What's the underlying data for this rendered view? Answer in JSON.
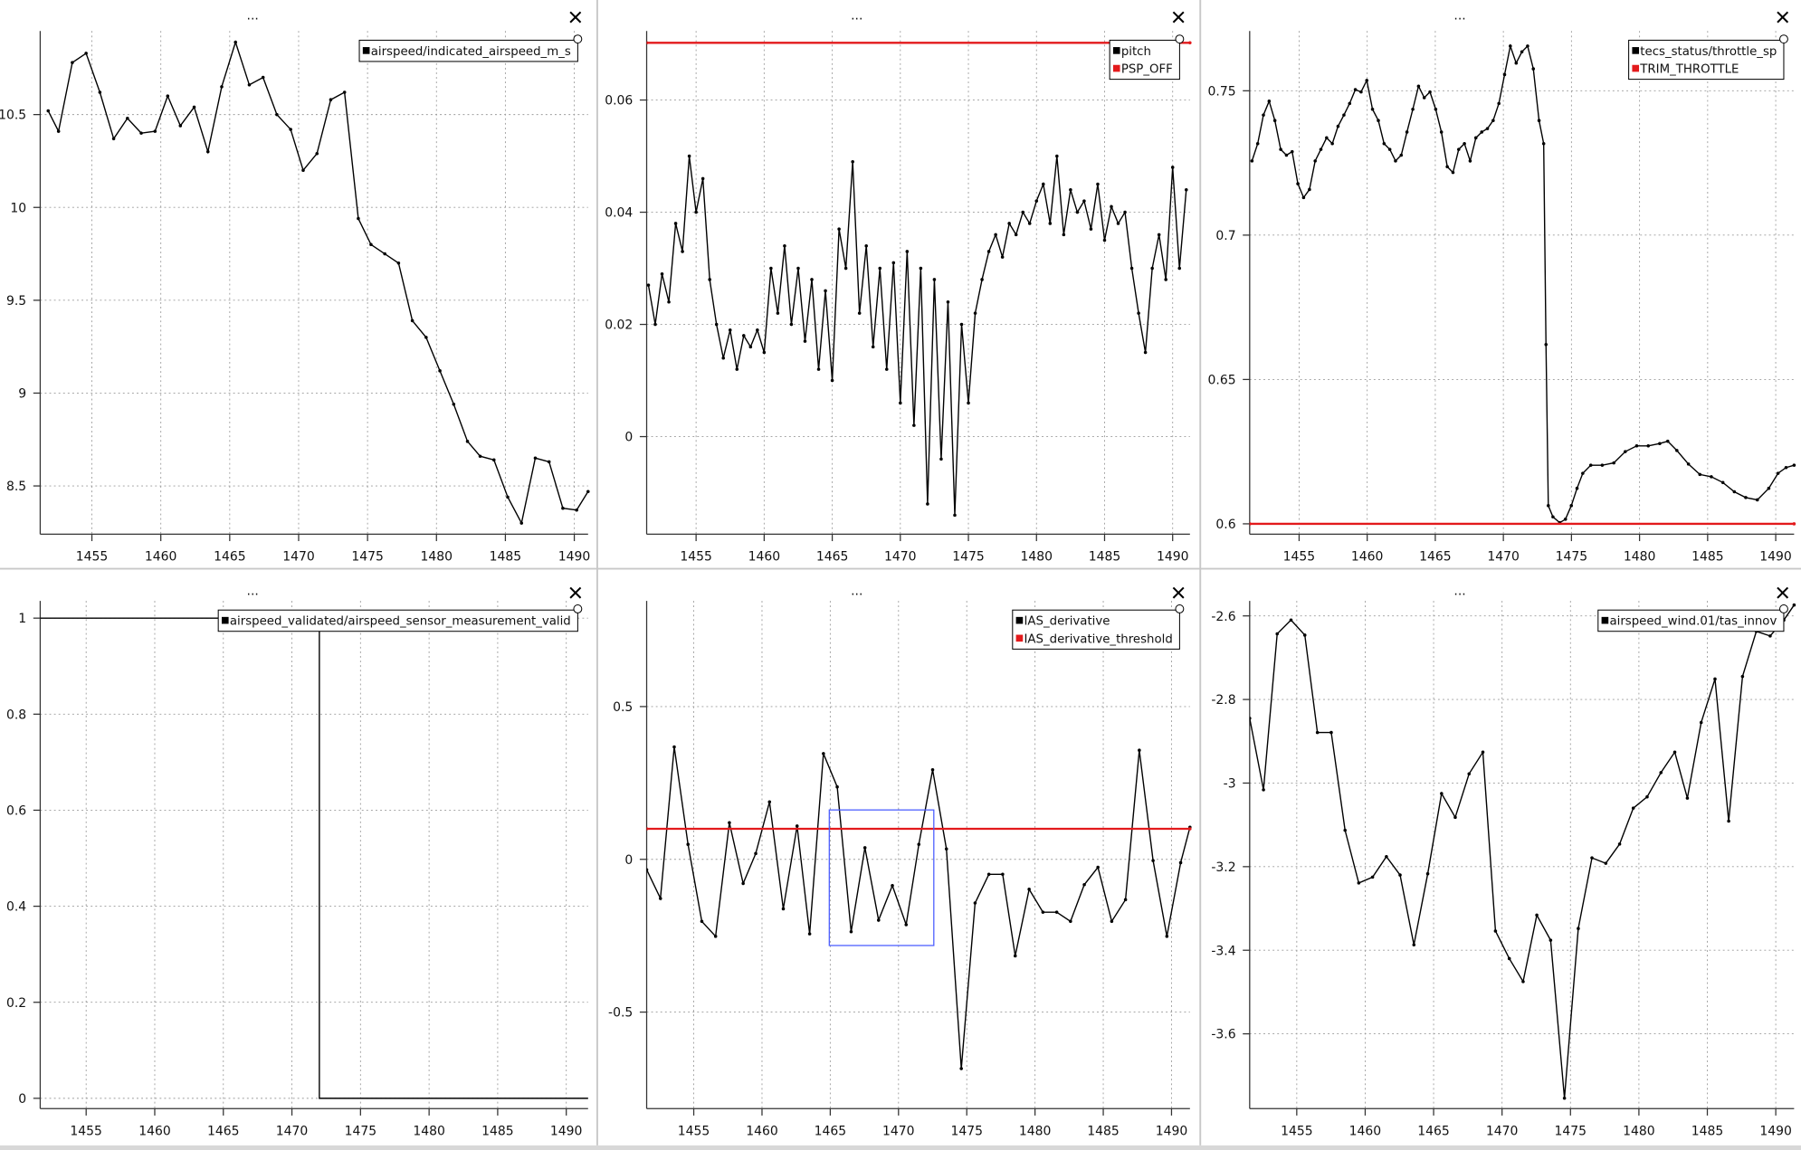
{
  "chart_data": [
    {
      "type": "line",
      "title": "...",
      "grid": true,
      "legend": "top-right",
      "markers": true,
      "xlim": [
        1451.25,
        1491
      ],
      "ylim": [
        8.24,
        10.95
      ],
      "xticks": [
        1455,
        1460,
        1465,
        1470,
        1475,
        1480,
        1485,
        1490
      ],
      "yticks": [
        8.5,
        9,
        9.5,
        10,
        10.5
      ],
      "series": [
        {
          "name": "airspeed/indicated_airspeed_m_s",
          "color": "#000000",
          "x": [
            1451.83,
            1452.58,
            1453.58,
            1454.58,
            1455.58,
            1456.58,
            1457.58,
            1458.58,
            1459.58,
            1460.5,
            1461.42,
            1462.42,
            1463.42,
            1464.42,
            1465.42,
            1466.42,
            1467.42,
            1468.42,
            1469.42,
            1470.33,
            1471.33,
            1472.33,
            1473.33,
            1474.33,
            1475.25,
            1476.25,
            1477.25,
            1478.25,
            1479.25,
            1480.25,
            1481.25,
            1482.25,
            1483.17,
            1484.17,
            1485.17,
            1486.17,
            1487.17,
            1488.17,
            1489.17,
            1490.17,
            1491.0
          ],
          "values": [
            10.52,
            10.41,
            10.78,
            10.83,
            10.62,
            10.37,
            10.48,
            10.4,
            10.41,
            10.6,
            10.44,
            10.54,
            10.3,
            10.65,
            10.89,
            10.66,
            10.7,
            10.5,
            10.42,
            10.2,
            10.29,
            10.58,
            10.62,
            9.94,
            9.8,
            9.75,
            9.7,
            9.39,
            9.3,
            9.12,
            8.94,
            8.74,
            8.66,
            8.64,
            8.44,
            8.3,
            8.65,
            8.63,
            8.38,
            8.37,
            8.47
          ]
        }
      ]
    },
    {
      "type": "line",
      "title": "...",
      "grid": true,
      "legend": "top-right",
      "markers": true,
      "xlim": [
        1451.37,
        1491.27
      ],
      "ylim": [
        -0.0174,
        0.0723
      ],
      "xticks": [
        1455,
        1460,
        1465,
        1470,
        1475,
        1480,
        1485,
        1490
      ],
      "yticks": [
        0,
        0.02,
        0.04,
        0.06
      ],
      "series": [
        {
          "name": "pitch",
          "color": "#000000",
          "x": [
            1451.5,
            1452,
            1452.5,
            1453,
            1453.5,
            1454,
            1454.5,
            1455,
            1455.5,
            1456,
            1456.5,
            1457,
            1457.5,
            1458,
            1458.5,
            1459,
            1459.5,
            1460,
            1460.5,
            1461,
            1461.5,
            1462,
            1462.5,
            1463,
            1463.5,
            1464,
            1464.5,
            1465,
            1465.5,
            1466,
            1466.5,
            1467,
            1467.5,
            1468,
            1468.5,
            1469,
            1469.5,
            1470,
            1470.5,
            1471,
            1471.5,
            1472,
            1472.5,
            1473,
            1473.5,
            1474,
            1474.5,
            1475,
            1475.5,
            1476,
            1476.5,
            1477,
            1477.5,
            1478,
            1478.5,
            1479,
            1479.5,
            1480,
            1480.5,
            1481,
            1481.5,
            1482,
            1482.5,
            1483,
            1483.5,
            1484,
            1484.5,
            1485,
            1485.5,
            1486,
            1486.5,
            1487,
            1487.5,
            1488,
            1488.5,
            1489,
            1489.5,
            1490,
            1490.5,
            1491
          ],
          "values": [
            0.027,
            0.02,
            0.029,
            0.024,
            0.038,
            0.033,
            0.05,
            0.04,
            0.046,
            0.028,
            0.02,
            0.014,
            0.019,
            0.012,
            0.018,
            0.016,
            0.019,
            0.015,
            0.03,
            0.022,
            0.034,
            0.02,
            0.03,
            0.017,
            0.028,
            0.012,
            0.026,
            0.01,
            0.037,
            0.03,
            0.049,
            0.022,
            0.034,
            0.016,
            0.03,
            0.012,
            0.031,
            0.006,
            0.033,
            0.002,
            0.03,
            -0.012,
            0.028,
            -0.004,
            0.024,
            -0.014,
            0.02,
            0.006,
            0.022,
            0.028,
            0.033,
            0.036,
            0.032,
            0.038,
            0.036,
            0.04,
            0.038,
            0.042,
            0.045,
            0.038,
            0.05,
            0.036,
            0.044,
            0.04,
            0.042,
            0.037,
            0.045,
            0.035,
            0.041,
            0.038,
            0.04,
            0.03,
            0.022,
            0.015,
            0.03,
            0.036,
            0.028,
            0.048,
            0.03,
            0.044
          ]
        },
        {
          "name": "PSP_OFF",
          "color": "#e31a1c",
          "x": [
            1451.37,
            1491.27
          ],
          "values": [
            0.0702,
            0.0702
          ]
        }
      ]
    },
    {
      "type": "line",
      "title": "...",
      "grid": true,
      "legend": "top-right",
      "markers": true,
      "xlim": [
        1451.37,
        1491.35
      ],
      "ylim": [
        0.5964,
        0.7707
      ],
      "xticks": [
        1455,
        1460,
        1465,
        1470,
        1475,
        1480,
        1485,
        1490
      ],
      "yticks": [
        0.6,
        0.65,
        0.7,
        0.75
      ],
      "series": [
        {
          "name": "tecs_status/throttle_sp",
          "color": "#000000",
          "x": [
            1451.54,
            1451.96,
            1452.38,
            1452.8,
            1453.22,
            1453.65,
            1454.07,
            1454.49,
            1454.91,
            1455.33,
            1455.76,
            1456.18,
            1456.6,
            1457.02,
            1457.44,
            1457.86,
            1458.29,
            1458.71,
            1459.13,
            1459.55,
            1459.97,
            1460.39,
            1460.82,
            1461.24,
            1461.66,
            1462.08,
            1462.5,
            1462.92,
            1463.35,
            1463.77,
            1464.19,
            1464.61,
            1465.03,
            1465.45,
            1465.88,
            1466.3,
            1466.72,
            1467.14,
            1467.56,
            1467.98,
            1468.41,
            1468.83,
            1469.25,
            1469.67,
            1470.09,
            1470.51,
            1470.94,
            1471.36,
            1471.78,
            1472.2,
            1472.62,
            1472.96,
            1473.13,
            1473.3,
            1473.64,
            1474.14,
            1474.56,
            1474.99,
            1475.41,
            1475.83,
            1476.42,
            1477.26,
            1478.11,
            1478.95,
            1479.79,
            1480.64,
            1481.48,
            1482.07,
            1482.74,
            1483.59,
            1484.43,
            1485.27,
            1486.12,
            1486.96,
            1487.8,
            1488.65,
            1489.49,
            1490.17,
            1490.76,
            1491.35
          ],
          "values": [
            0.7257,
            0.7317,
            0.7416,
            0.7464,
            0.7397,
            0.7297,
            0.7277,
            0.7289,
            0.7178,
            0.713,
            0.7158,
            0.7257,
            0.7297,
            0.7337,
            0.7317,
            0.7377,
            0.7416,
            0.7456,
            0.7504,
            0.7496,
            0.7536,
            0.7436,
            0.7397,
            0.7317,
            0.7297,
            0.7257,
            0.7277,
            0.7357,
            0.7436,
            0.7516,
            0.7476,
            0.7496,
            0.7436,
            0.7357,
            0.7237,
            0.7217,
            0.7297,
            0.7317,
            0.7257,
            0.7337,
            0.7357,
            0.7369,
            0.7397,
            0.7456,
            0.7556,
            0.7655,
            0.7596,
            0.7635,
            0.7655,
            0.7576,
            0.7397,
            0.7317,
            0.6621,
            0.6063,
            0.6024,
            0.6004,
            0.6016,
            0.6063,
            0.6123,
            0.6175,
            0.6203,
            0.6203,
            0.6211,
            0.625,
            0.627,
            0.627,
            0.6278,
            0.6286,
            0.6254,
            0.6207,
            0.6171,
            0.6163,
            0.6143,
            0.6111,
            0.6091,
            0.6083,
            0.6123,
            0.6175,
            0.6195,
            0.6203
          ]
        },
        {
          "name": "TRIM_THROTTLE",
          "color": "#e31a1c",
          "x": [
            1451.37,
            1491.35
          ],
          "values": [
            0.6,
            0.6
          ]
        }
      ]
    },
    {
      "type": "line",
      "title": "...",
      "grid": true,
      "legend": "top-right",
      "markers": false,
      "xlim": [
        1451.65,
        1491.59
      ],
      "ylim": [
        -0.0215,
        1.036
      ],
      "xticks": [
        1455,
        1460,
        1465,
        1470,
        1475,
        1480,
        1485,
        1490
      ],
      "yticks": [
        0,
        0.2,
        0.4,
        0.6,
        0.8,
        1
      ],
      "series": [
        {
          "name": "airspeed_validated/airspeed_sensor_measurement_valid",
          "color": "#000000",
          "x": [
            1451.65,
            1472.0,
            1472.0,
            1491.59
          ],
          "values": [
            1,
            1,
            0,
            0
          ]
        }
      ]
    },
    {
      "type": "line",
      "title": "...",
      "grid": true,
      "legend": "top-right",
      "markers": true,
      "xlim": [
        1451.55,
        1491.35
      ],
      "ylim": [
        -0.816,
        0.846
      ],
      "xticks": [
        1455,
        1460,
        1465,
        1470,
        1475,
        1480,
        1485,
        1490
      ],
      "yticks": [
        -0.5,
        0,
        0.5
      ],
      "series": [
        {
          "name": "IAS_derivative",
          "color": "#000000",
          "x": [
            1451.55,
            1452.56,
            1453.57,
            1454.58,
            1455.59,
            1456.6,
            1457.61,
            1458.62,
            1459.54,
            1460.55,
            1461.56,
            1462.57,
            1463.49,
            1464.5,
            1465.51,
            1466.53,
            1467.54,
            1468.54,
            1469.55,
            1470.56,
            1471.49,
            1472.5,
            1473.51,
            1474.6,
            1475.61,
            1476.62,
            1477.63,
            1478.55,
            1479.57,
            1480.58,
            1481.59,
            1482.6,
            1483.61,
            1484.61,
            1485.62,
            1486.63,
            1487.64,
            1488.65,
            1489.66,
            1490.67,
            1491.35
          ],
          "values": [
            -0.034,
            -0.128,
            0.368,
            0.049,
            -0.203,
            -0.252,
            0.12,
            -0.079,
            0.019,
            0.188,
            -0.162,
            0.109,
            -0.244,
            0.346,
            0.237,
            -0.237,
            0.038,
            -0.199,
            -0.086,
            -0.214,
            0.049,
            0.293,
            0.034,
            -0.685,
            -0.143,
            -0.049,
            -0.049,
            -0.316,
            -0.098,
            -0.173,
            -0.173,
            -0.203,
            -0.083,
            -0.026,
            -0.203,
            -0.132,
            0.357,
            -0.004,
            -0.252,
            -0.011,
            0.105
          ]
        },
        {
          "name": "IAS_derivative_threshold",
          "color": "#e31a1c",
          "x": [
            1451.55,
            1491.35
          ],
          "values": [
            0.1,
            0.1
          ]
        }
      ]
    },
    {
      "type": "line",
      "title": "...",
      "grid": true,
      "legend": "top-right",
      "markers": true,
      "xlim": [
        1451.56,
        1491.34
      ],
      "ylim": [
        -3.779,
        -2.564
      ],
      "xticks": [
        1455,
        1460,
        1465,
        1470,
        1475,
        1480,
        1485,
        1490
      ],
      "yticks": [
        -3.6,
        -3.4,
        -3.2,
        -3,
        -2.8,
        -2.6
      ],
      "series": [
        {
          "name": "airspeed_wind.01/tas_innov",
          "color": "#000000",
          "x": [
            1451.56,
            1452.57,
            1453.57,
            1454.58,
            1455.59,
            1456.51,
            1457.52,
            1458.53,
            1459.53,
            1460.54,
            1461.55,
            1462.55,
            1463.56,
            1464.57,
            1465.58,
            1466.58,
            1467.59,
            1468.6,
            1469.52,
            1470.53,
            1471.54,
            1472.54,
            1473.55,
            1474.56,
            1475.57,
            1476.57,
            1477.58,
            1478.59,
            1479.59,
            1480.6,
            1481.61,
            1482.62,
            1483.54,
            1484.55,
            1485.56,
            1486.56,
            1487.57,
            1488.58,
            1489.59,
            1490.59,
            1491.34
          ],
          "values": [
            -2.845,
            -3.016,
            -2.643,
            -2.61,
            -2.646,
            -2.879,
            -2.879,
            -3.113,
            -3.239,
            -3.225,
            -3.176,
            -3.22,
            -3.387,
            -3.217,
            -3.025,
            -3.082,
            -2.978,
            -2.926,
            -3.354,
            -3.42,
            -3.475,
            -3.316,
            -3.376,
            -3.754,
            -3.348,
            -3.179,
            -3.192,
            -3.146,
            -3.06,
            -3.033,
            -2.975,
            -2.926,
            -3.036,
            -2.855,
            -2.751,
            -3.091,
            -2.745,
            -2.637,
            -2.648,
            -2.61,
            -2.574
          ]
        }
      ]
    }
  ]
}
